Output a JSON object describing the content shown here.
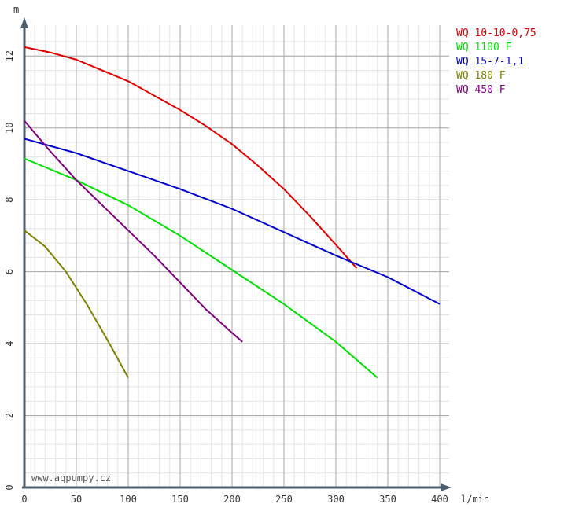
{
  "chart_data": {
    "type": "line",
    "title": "",
    "xlabel": "l/min",
    "ylabel": "m",
    "xlim": [
      0,
      400
    ],
    "ylim": [
      0,
      13
    ],
    "xticks": [
      0,
      50,
      100,
      150,
      200,
      250,
      300,
      350,
      400
    ],
    "yticks": [
      0,
      2,
      4,
      6,
      8,
      10,
      12
    ],
    "grid": true,
    "legend_position": "top-right",
    "watermark": "www.aqpumpy.cz",
    "series": [
      {
        "name": "WQ 10-10-0,75",
        "color": "#e00000",
        "x": [
          0,
          25,
          50,
          75,
          100,
          125,
          150,
          175,
          200,
          225,
          250,
          275,
          300,
          320
        ],
        "y": [
          12.25,
          12.1,
          11.9,
          11.6,
          11.3,
          10.9,
          10.5,
          10.05,
          9.55,
          8.95,
          8.3,
          7.55,
          6.75,
          6.1
        ]
      },
      {
        "name": "WQ 1100 F",
        "color": "#00e000",
        "x": [
          0,
          50,
          100,
          150,
          200,
          250,
          300,
          340
        ],
        "y": [
          9.15,
          8.55,
          7.85,
          7.0,
          6.05,
          5.1,
          4.05,
          3.05
        ]
      },
      {
        "name": "WQ 15-7-1,1",
        "color": "#0000cc",
        "x": [
          0,
          50,
          100,
          150,
          200,
          250,
          300,
          350,
          400
        ],
        "y": [
          9.7,
          9.3,
          8.8,
          8.3,
          7.75,
          7.1,
          6.45,
          5.85,
          5.1
        ]
      },
      {
        "name": "WQ 180 F",
        "color": "#808000",
        "x": [
          0,
          20,
          40,
          60,
          80,
          100
        ],
        "y": [
          7.15,
          6.7,
          6.0,
          5.1,
          4.1,
          3.05
        ]
      },
      {
        "name": "WQ 450 F",
        "color": "#800080",
        "x": [
          0,
          25,
          50,
          75,
          100,
          125,
          150,
          175,
          200,
          210
        ],
        "y": [
          10.2,
          9.35,
          8.55,
          7.85,
          7.15,
          6.45,
          5.7,
          4.95,
          4.3,
          4.05
        ]
      }
    ]
  }
}
